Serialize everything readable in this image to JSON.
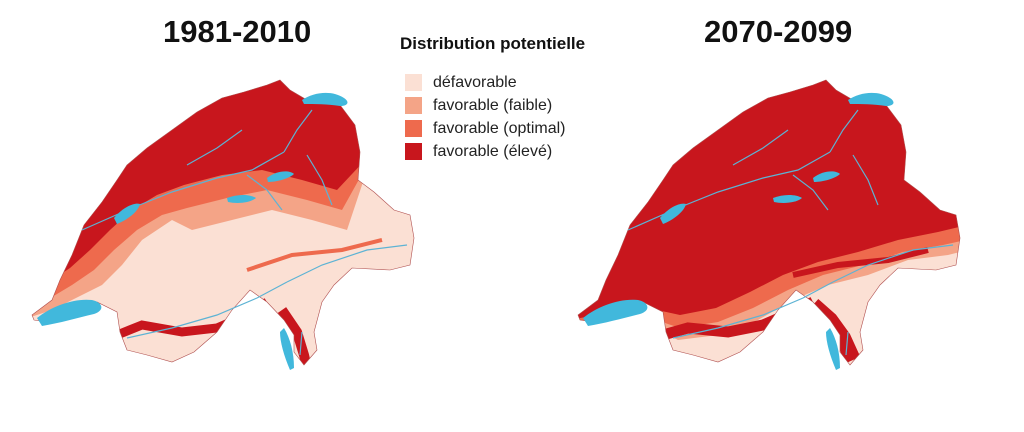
{
  "periods": {
    "left": "1981-2010",
    "right": "2070-2099"
  },
  "legend": {
    "title": "Distribution potentielle",
    "items": [
      {
        "label": "défavorable",
        "color": "#fbe0d4"
      },
      {
        "label": "favorable (faible)",
        "color": "#f4a487"
      },
      {
        "label": "favorable (optimal)",
        "color": "#ee6a4d"
      },
      {
        "label": "favorable (élevé)",
        "color": "#c8161d"
      }
    ]
  },
  "colors": {
    "water": "#41b8dc",
    "river": "#5db3d4"
  }
}
